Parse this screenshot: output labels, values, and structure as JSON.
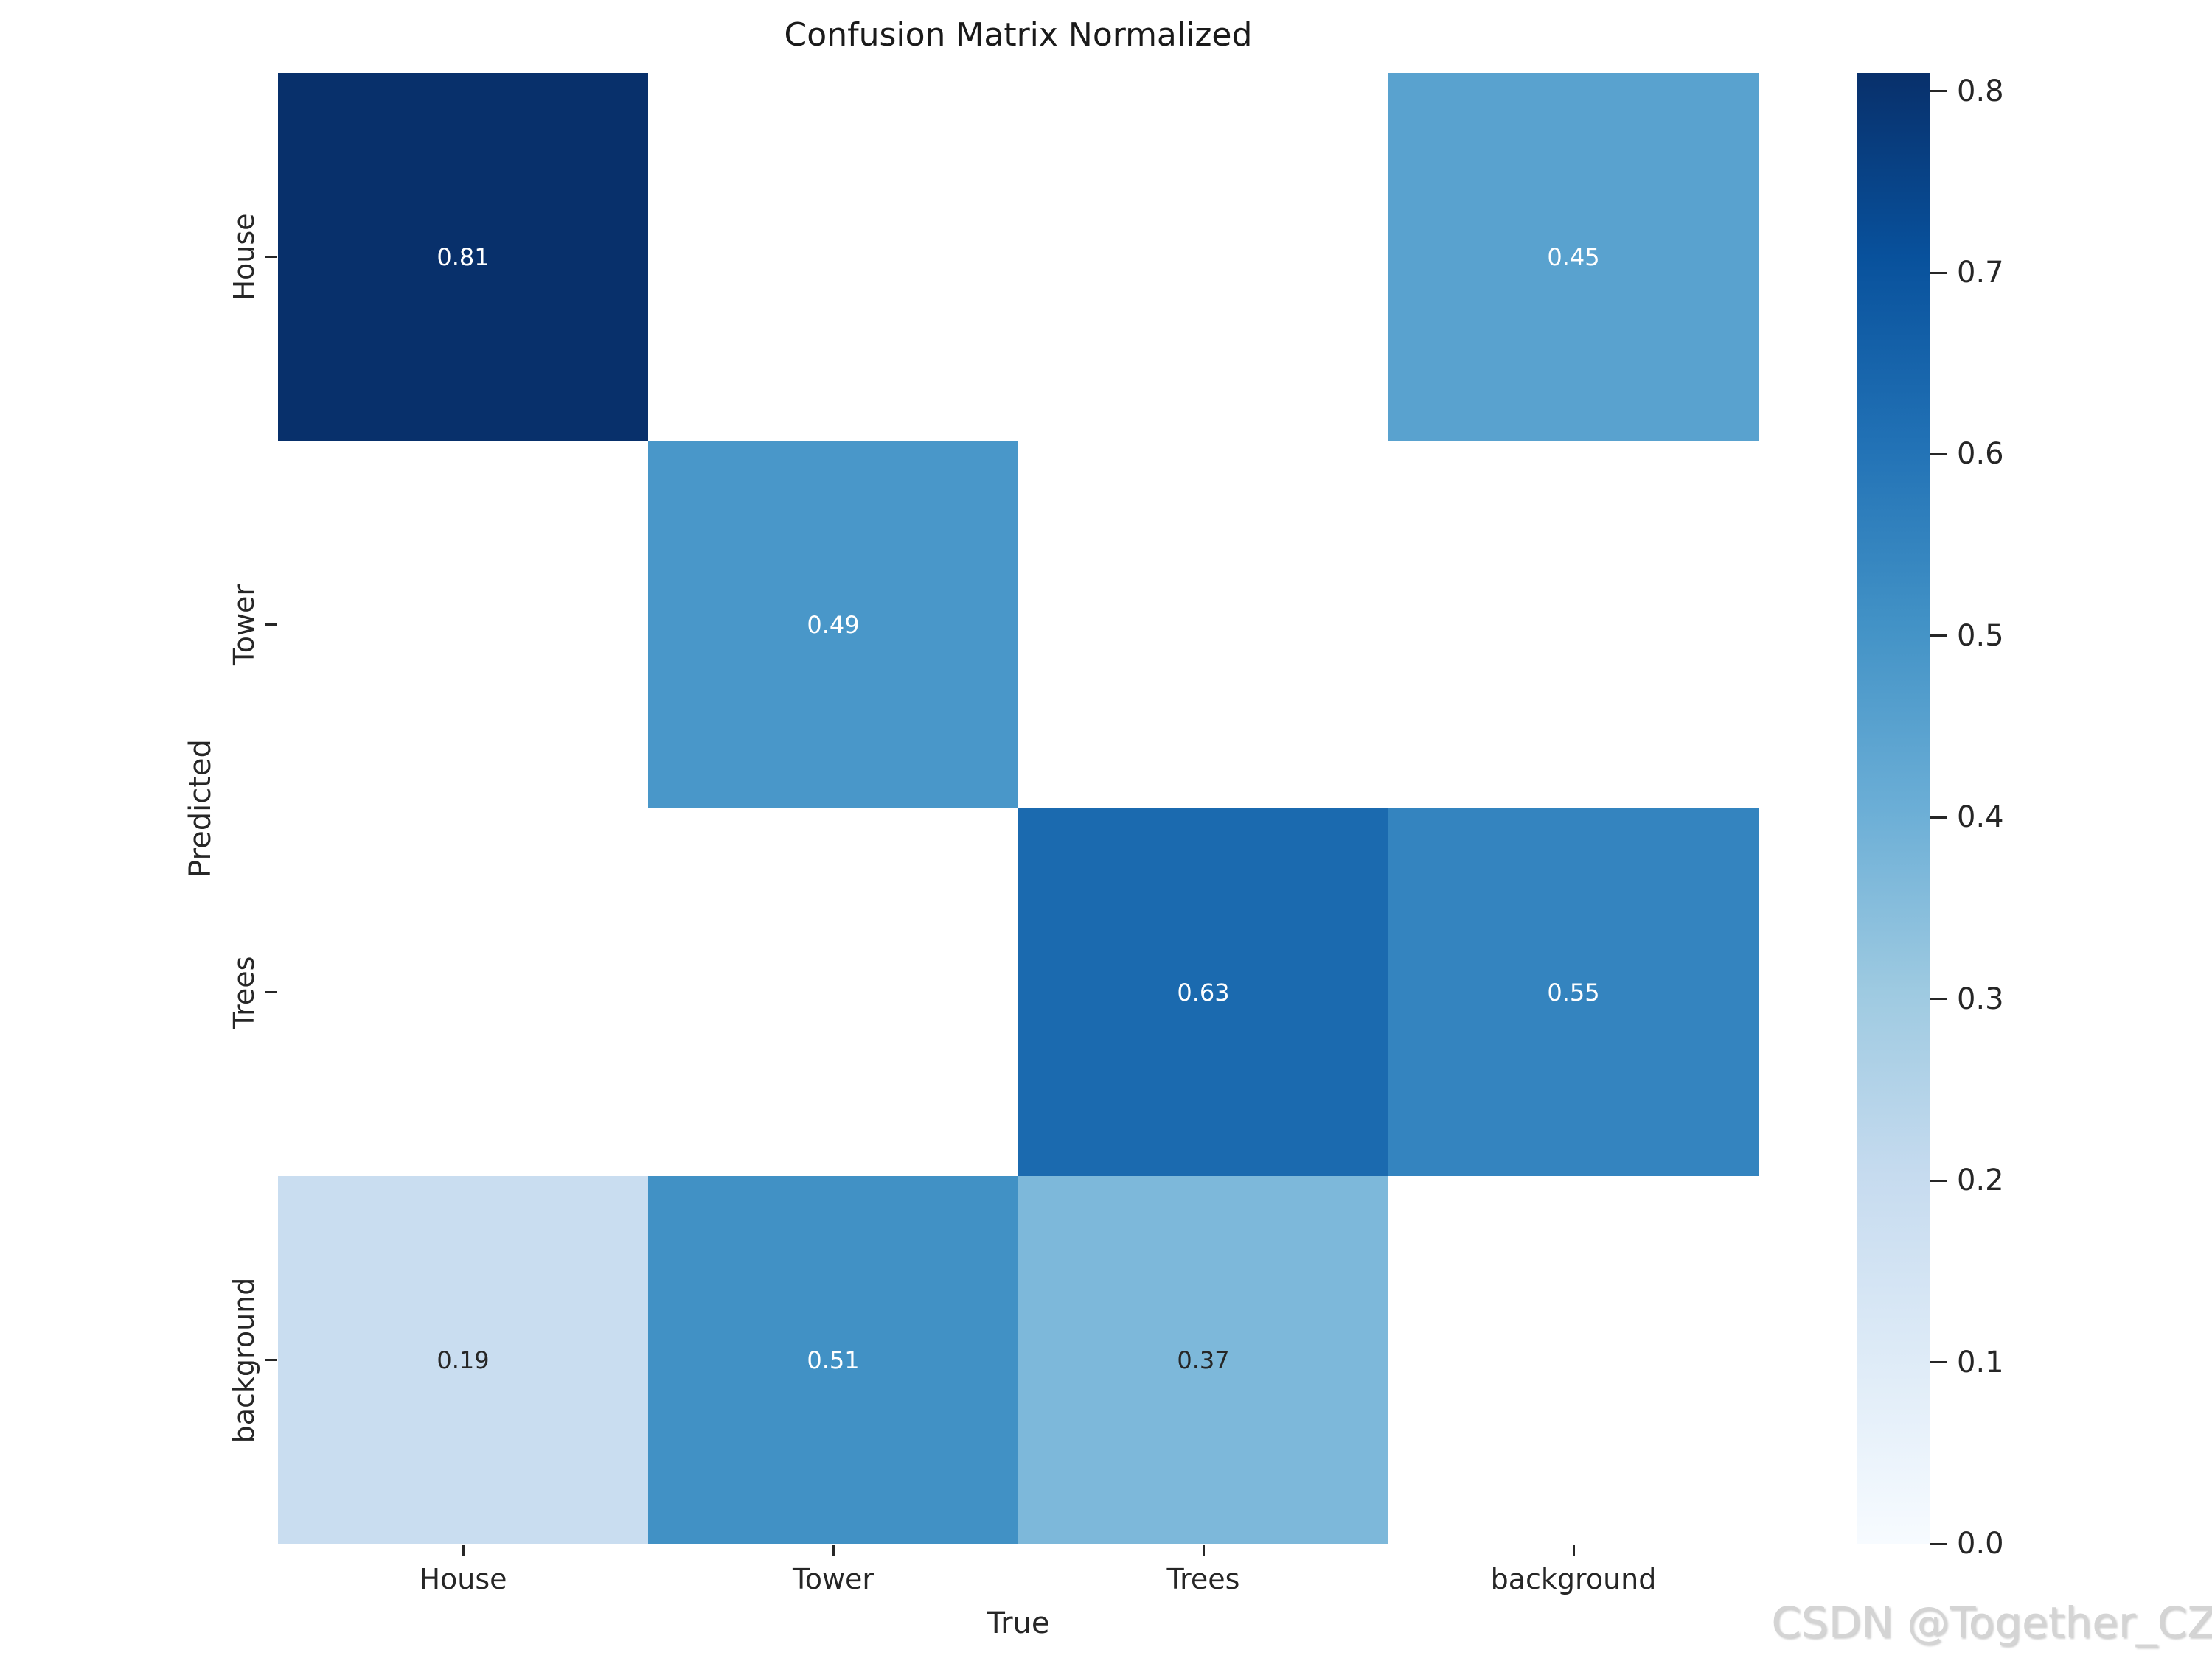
{
  "title": "Confusion Matrix Normalized",
  "watermark": "CSDN @Together_CZ",
  "axes": {
    "x_label": "True",
    "y_label": "Predicted",
    "x_ticks": [
      "House",
      "Tower",
      "Trees",
      "background"
    ],
    "y_ticks": [
      "House",
      "Tower",
      "Trees",
      "background"
    ]
  },
  "colors": {
    "text": "#262626",
    "annotation_light": "#ffffff",
    "annotation_dark": "#262626",
    "empty_cell": "#ffffff",
    "watermark": "#d4d4d4"
  },
  "chart_data": {
    "type": "heatmap",
    "title": "Confusion Matrix Normalized",
    "xlabel": "True",
    "ylabel": "Predicted",
    "categories_x": [
      "House",
      "Tower",
      "Trees",
      "background"
    ],
    "categories_y": [
      "House",
      "Tower",
      "Trees",
      "background"
    ],
    "matrix": [
      [
        0.81,
        null,
        null,
        0.45
      ],
      [
        null,
        0.49,
        null,
        null
      ],
      [
        null,
        null,
        0.63,
        0.55
      ],
      [
        0.19,
        0.51,
        0.37,
        null
      ]
    ],
    "cell_colors": [
      [
        "#08306b",
        null,
        null,
        "#59a2cf"
      ],
      [
        null,
        "#4997c9",
        null,
        null
      ],
      [
        null,
        null,
        "#1b6aaf",
        "#3484bf"
      ],
      [
        "#c9ddf0",
        "#4191c5",
        "#7db8da",
        null
      ]
    ],
    "cell_text_colors": [
      [
        "#ffffff",
        null,
        null,
        "#ffffff"
      ],
      [
        null,
        "#ffffff",
        null,
        null
      ],
      [
        null,
        null,
        "#ffffff",
        "#ffffff"
      ],
      [
        "#262626",
        "#ffffff",
        "#262626",
        null
      ]
    ],
    "value_format_decimals": 2,
    "colormap": "Blues",
    "vmin": 0.0,
    "vmax": 0.81,
    "colorbar_ticks": [
      0.8,
      0.7,
      0.6,
      0.5,
      0.4,
      0.3,
      0.2,
      0.1,
      0.0
    ],
    "colorbar_gradient_top_to_bottom": [
      "#08306b",
      "#08519c",
      "#2171b5",
      "#4292c6",
      "#6baed6",
      "#9ecae1",
      "#c6dbef",
      "#deebf7",
      "#f7fbff"
    ],
    "legend_position": "right-colorbar",
    "grid": false
  }
}
